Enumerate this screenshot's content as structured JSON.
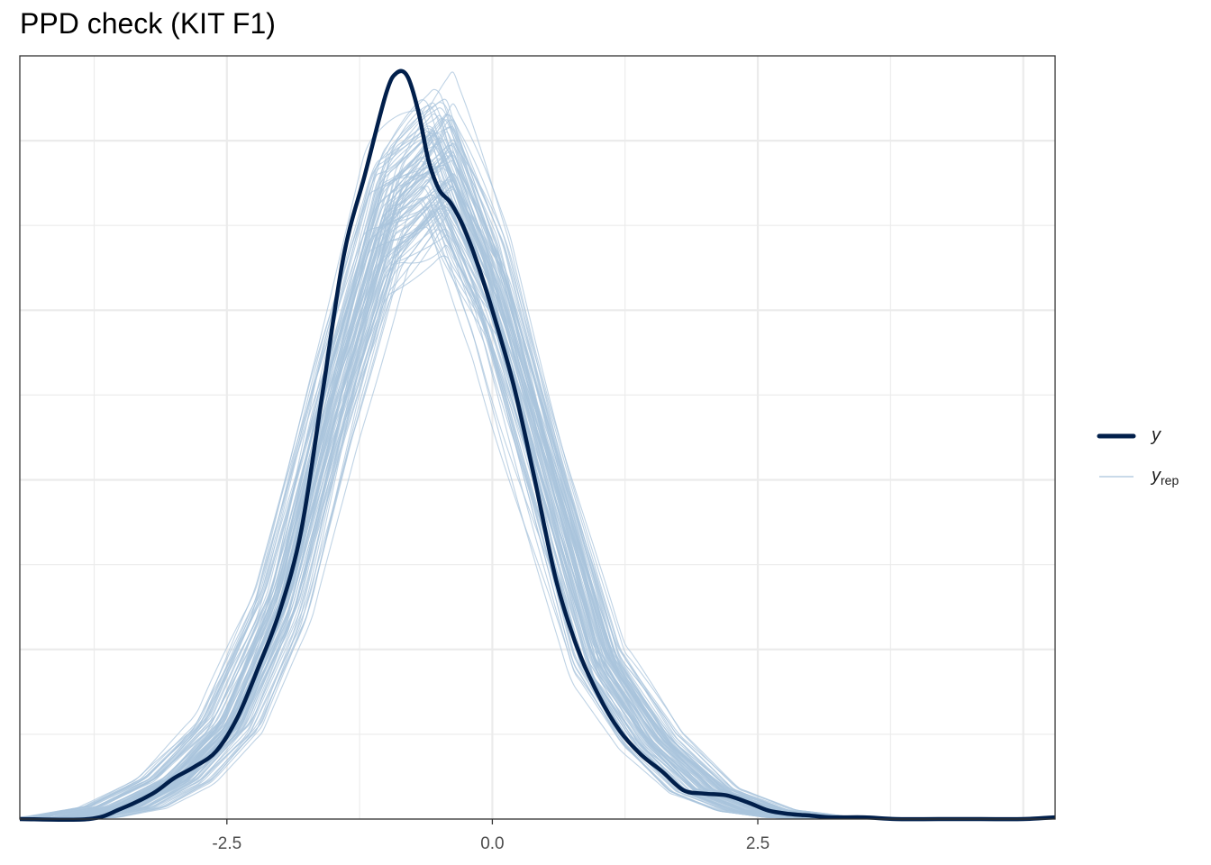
{
  "chart_data": {
    "type": "line",
    "title": "PPD check (KIT F1)",
    "xlabel": "",
    "ylabel": "",
    "xlim": [
      -4.45,
      5.3
    ],
    "ylim": [
      0,
      0.45
    ],
    "x_ticks": [
      -2.5,
      0.0,
      2.5
    ],
    "x_tick_labels": [
      "-2.5",
      "0.0",
      "2.5"
    ],
    "y_tick_labels_shown": false,
    "grid": true,
    "legend_position": "right",
    "series": [
      {
        "name": "y",
        "role": "observed",
        "color": "#011f4b",
        "x": [
          -4.45,
          -3.8,
          -3.5,
          -3.2,
          -3.0,
          -2.8,
          -2.6,
          -2.4,
          -2.2,
          -2.0,
          -1.8,
          -1.6,
          -1.4,
          -1.2,
          -1.0,
          -0.9,
          -0.8,
          -0.7,
          -0.6,
          -0.5,
          -0.4,
          -0.3,
          -0.2,
          -0.1,
          0.0,
          0.2,
          0.4,
          0.6,
          0.8,
          1.0,
          1.2,
          1.4,
          1.6,
          1.8,
          2.0,
          2.2,
          2.4,
          2.6,
          2.8,
          3.0,
          3.2,
          3.5,
          3.8,
          4.2,
          4.6,
          5.0,
          5.3
        ],
        "y": [
          0.0,
          0.0,
          0.006,
          0.015,
          0.024,
          0.031,
          0.04,
          0.06,
          0.09,
          0.123,
          0.17,
          0.251,
          0.332,
          0.38,
          0.428,
          0.44,
          0.438,
          0.418,
          0.388,
          0.371,
          0.364,
          0.353,
          0.338,
          0.32,
          0.3,
          0.256,
          0.2,
          0.141,
          0.101,
          0.073,
          0.052,
          0.038,
          0.028,
          0.017,
          0.015,
          0.014,
          0.01,
          0.005,
          0.003,
          0.002,
          0.001,
          0.001,
          0.0,
          0.0,
          0.0,
          0.0,
          0.001
        ]
      },
      {
        "name": "y_rep",
        "role": "replicated draws",
        "color": "#a9c4dc",
        "draw_count": 100,
        "x": [
          -4.45,
          -4.0,
          -3.5,
          -3.0,
          -2.5,
          -2.0,
          -1.5,
          -1.0,
          -0.5,
          0.0,
          0.5,
          1.0,
          1.5,
          2.0,
          2.5,
          3.0,
          3.5,
          4.0,
          4.5,
          5.0,
          5.3
        ],
        "y": [
          0.0,
          0.001,
          0.007,
          0.023,
          0.055,
          0.125,
          0.248,
          0.355,
          0.385,
          0.31,
          0.2,
          0.093,
          0.046,
          0.017,
          0.005,
          0.001,
          0.0,
          0.0,
          0.0,
          0.0,
          0.0
        ]
      }
    ]
  },
  "legend": {
    "items": [
      {
        "label": "y",
        "subscript": ""
      },
      {
        "label": "y",
        "subscript": "rep"
      }
    ]
  }
}
